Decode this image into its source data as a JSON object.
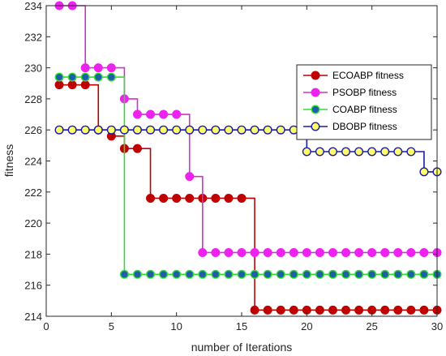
{
  "chart_data": {
    "type": "line",
    "title": "",
    "xlabel": "number of Iterations",
    "ylabel": "fitness",
    "xlim": [
      0,
      30
    ],
    "ylim": [
      214,
      234
    ],
    "xticks": [
      0,
      5,
      10,
      15,
      20,
      25,
      30
    ],
    "yticks": [
      214,
      216,
      218,
      220,
      222,
      224,
      226,
      228,
      230,
      232,
      234
    ],
    "grid": false,
    "legend_position": "top-right",
    "x": [
      1,
      2,
      3,
      4,
      5,
      6,
      7,
      8,
      9,
      10,
      11,
      12,
      13,
      14,
      15,
      16,
      17,
      18,
      19,
      20,
      21,
      22,
      23,
      24,
      25,
      26,
      27,
      28,
      29,
      30
    ],
    "series": [
      {
        "name": "ECOABP fitness",
        "line_color": "#c00000",
        "marker_color": "#c00000",
        "marker_edge": "#c00000",
        "values": [
          228.9,
          228.9,
          228.9,
          226.0,
          225.6,
          224.8,
          224.8,
          221.6,
          221.6,
          221.6,
          221.6,
          221.6,
          221.6,
          221.6,
          221.6,
          214.4,
          214.4,
          214.4,
          214.4,
          214.4,
          214.4,
          214.4,
          214.4,
          214.4,
          214.4,
          214.4,
          214.4,
          214.4,
          214.4,
          214.4
        ]
      },
      {
        "name": "PSOBP fitness",
        "line_color": "#cc33cc",
        "marker_color": "#ee22ee",
        "marker_edge": "#ee22ee",
        "values": [
          234.0,
          234.0,
          230.0,
          230.0,
          230.0,
          228.0,
          227.0,
          227.0,
          227.0,
          227.0,
          223.0,
          218.1,
          218.1,
          218.1,
          218.1,
          218.1,
          218.1,
          218.1,
          218.1,
          218.1,
          218.1,
          218.1,
          218.1,
          218.1,
          218.1,
          218.1,
          218.1,
          218.1,
          218.1,
          218.1
        ]
      },
      {
        "name": "COABP fitness",
        "line_color": "#33dd33",
        "marker_color": "#1f5fa8",
        "marker_edge": "#33dd33",
        "values": [
          229.4,
          229.4,
          229.4,
          229.4,
          229.4,
          216.7,
          216.7,
          216.7,
          216.7,
          216.7,
          216.7,
          216.7,
          216.7,
          216.7,
          216.7,
          216.7,
          216.7,
          216.7,
          216.7,
          216.7,
          216.7,
          216.7,
          216.7,
          216.7,
          216.7,
          216.7,
          216.7,
          216.7,
          216.7,
          216.7
        ]
      },
      {
        "name": "DBOBP fitness",
        "line_color": "#1a1aaa",
        "marker_color": "#ffff66",
        "marker_edge": "#1a1aaa",
        "values": [
          226.0,
          226.0,
          226.0,
          226.0,
          226.0,
          226.0,
          226.0,
          226.0,
          226.0,
          226.0,
          226.0,
          226.0,
          226.0,
          226.0,
          226.0,
          226.0,
          226.0,
          226.0,
          226.0,
          224.6,
          224.6,
          224.6,
          224.6,
          224.6,
          224.6,
          224.6,
          224.6,
          224.6,
          223.3,
          223.3
        ]
      }
    ]
  }
}
